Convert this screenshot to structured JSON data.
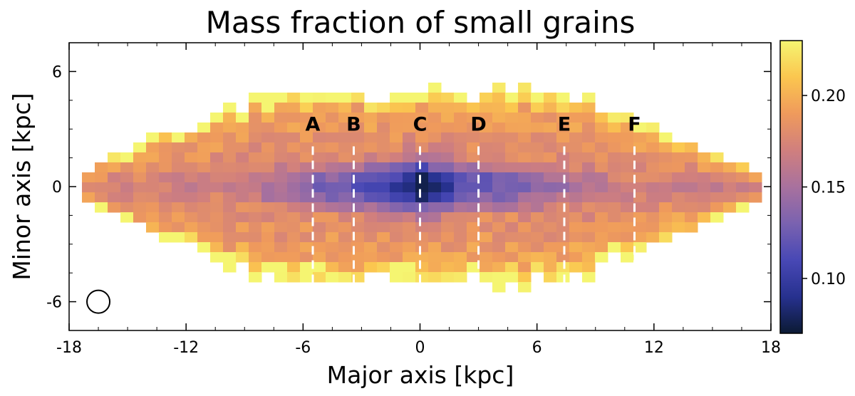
{
  "chart_data": {
    "type": "heatmap",
    "title": "Mass fraction of small grains",
    "xlabel": "Major axis [kpc]",
    "ylabel": "Minor axis [kpc]",
    "xlim": [
      -18,
      18
    ],
    "ylim": [
      -7.5,
      7.5
    ],
    "xticks": [
      -18,
      -12,
      -6,
      0,
      6,
      12,
      18
    ],
    "yticks": [
      -6,
      0,
      6
    ],
    "xtick_labels": [
      "-18",
      "-12",
      "-6",
      "0",
      "6",
      "12",
      "18"
    ],
    "ytick_labels": [
      "-6",
      "0",
      "6"
    ],
    "grid": false,
    "colorbar": {
      "range": [
        0.07,
        0.23
      ],
      "ticks": [
        0.1,
        0.15,
        0.2
      ],
      "tick_labels": [
        "0.10",
        "0.15",
        "0.20"
      ],
      "colors": [
        "#0b1a33",
        "#27318f",
        "#4848b5",
        "#7a62b0",
        "#a8719e",
        "#d07f7e",
        "#ef9a5c",
        "#fbc64f",
        "#f5f571"
      ]
    },
    "map": {
      "extent_x": [
        -18,
        18
      ],
      "half_height_top": 5.0,
      "half_height_bottom": 5.0,
      "center_value": 0.07,
      "disk_value": 0.11,
      "edge_value": 0.2,
      "outer_value": 0.23
    },
    "cuts": [
      {
        "label": "A",
        "x": -5.5
      },
      {
        "label": "B",
        "x": -3.4
      },
      {
        "label": "C",
        "x": 0
      },
      {
        "label": "D",
        "x": 3.0
      },
      {
        "label": "E",
        "x": 7.4
      },
      {
        "label": "F",
        "x": 11.0
      }
    ],
    "cut_range": [
      -5.0,
      2.1
    ],
    "beam": {
      "x": -16.5,
      "y": -6.0
    }
  }
}
